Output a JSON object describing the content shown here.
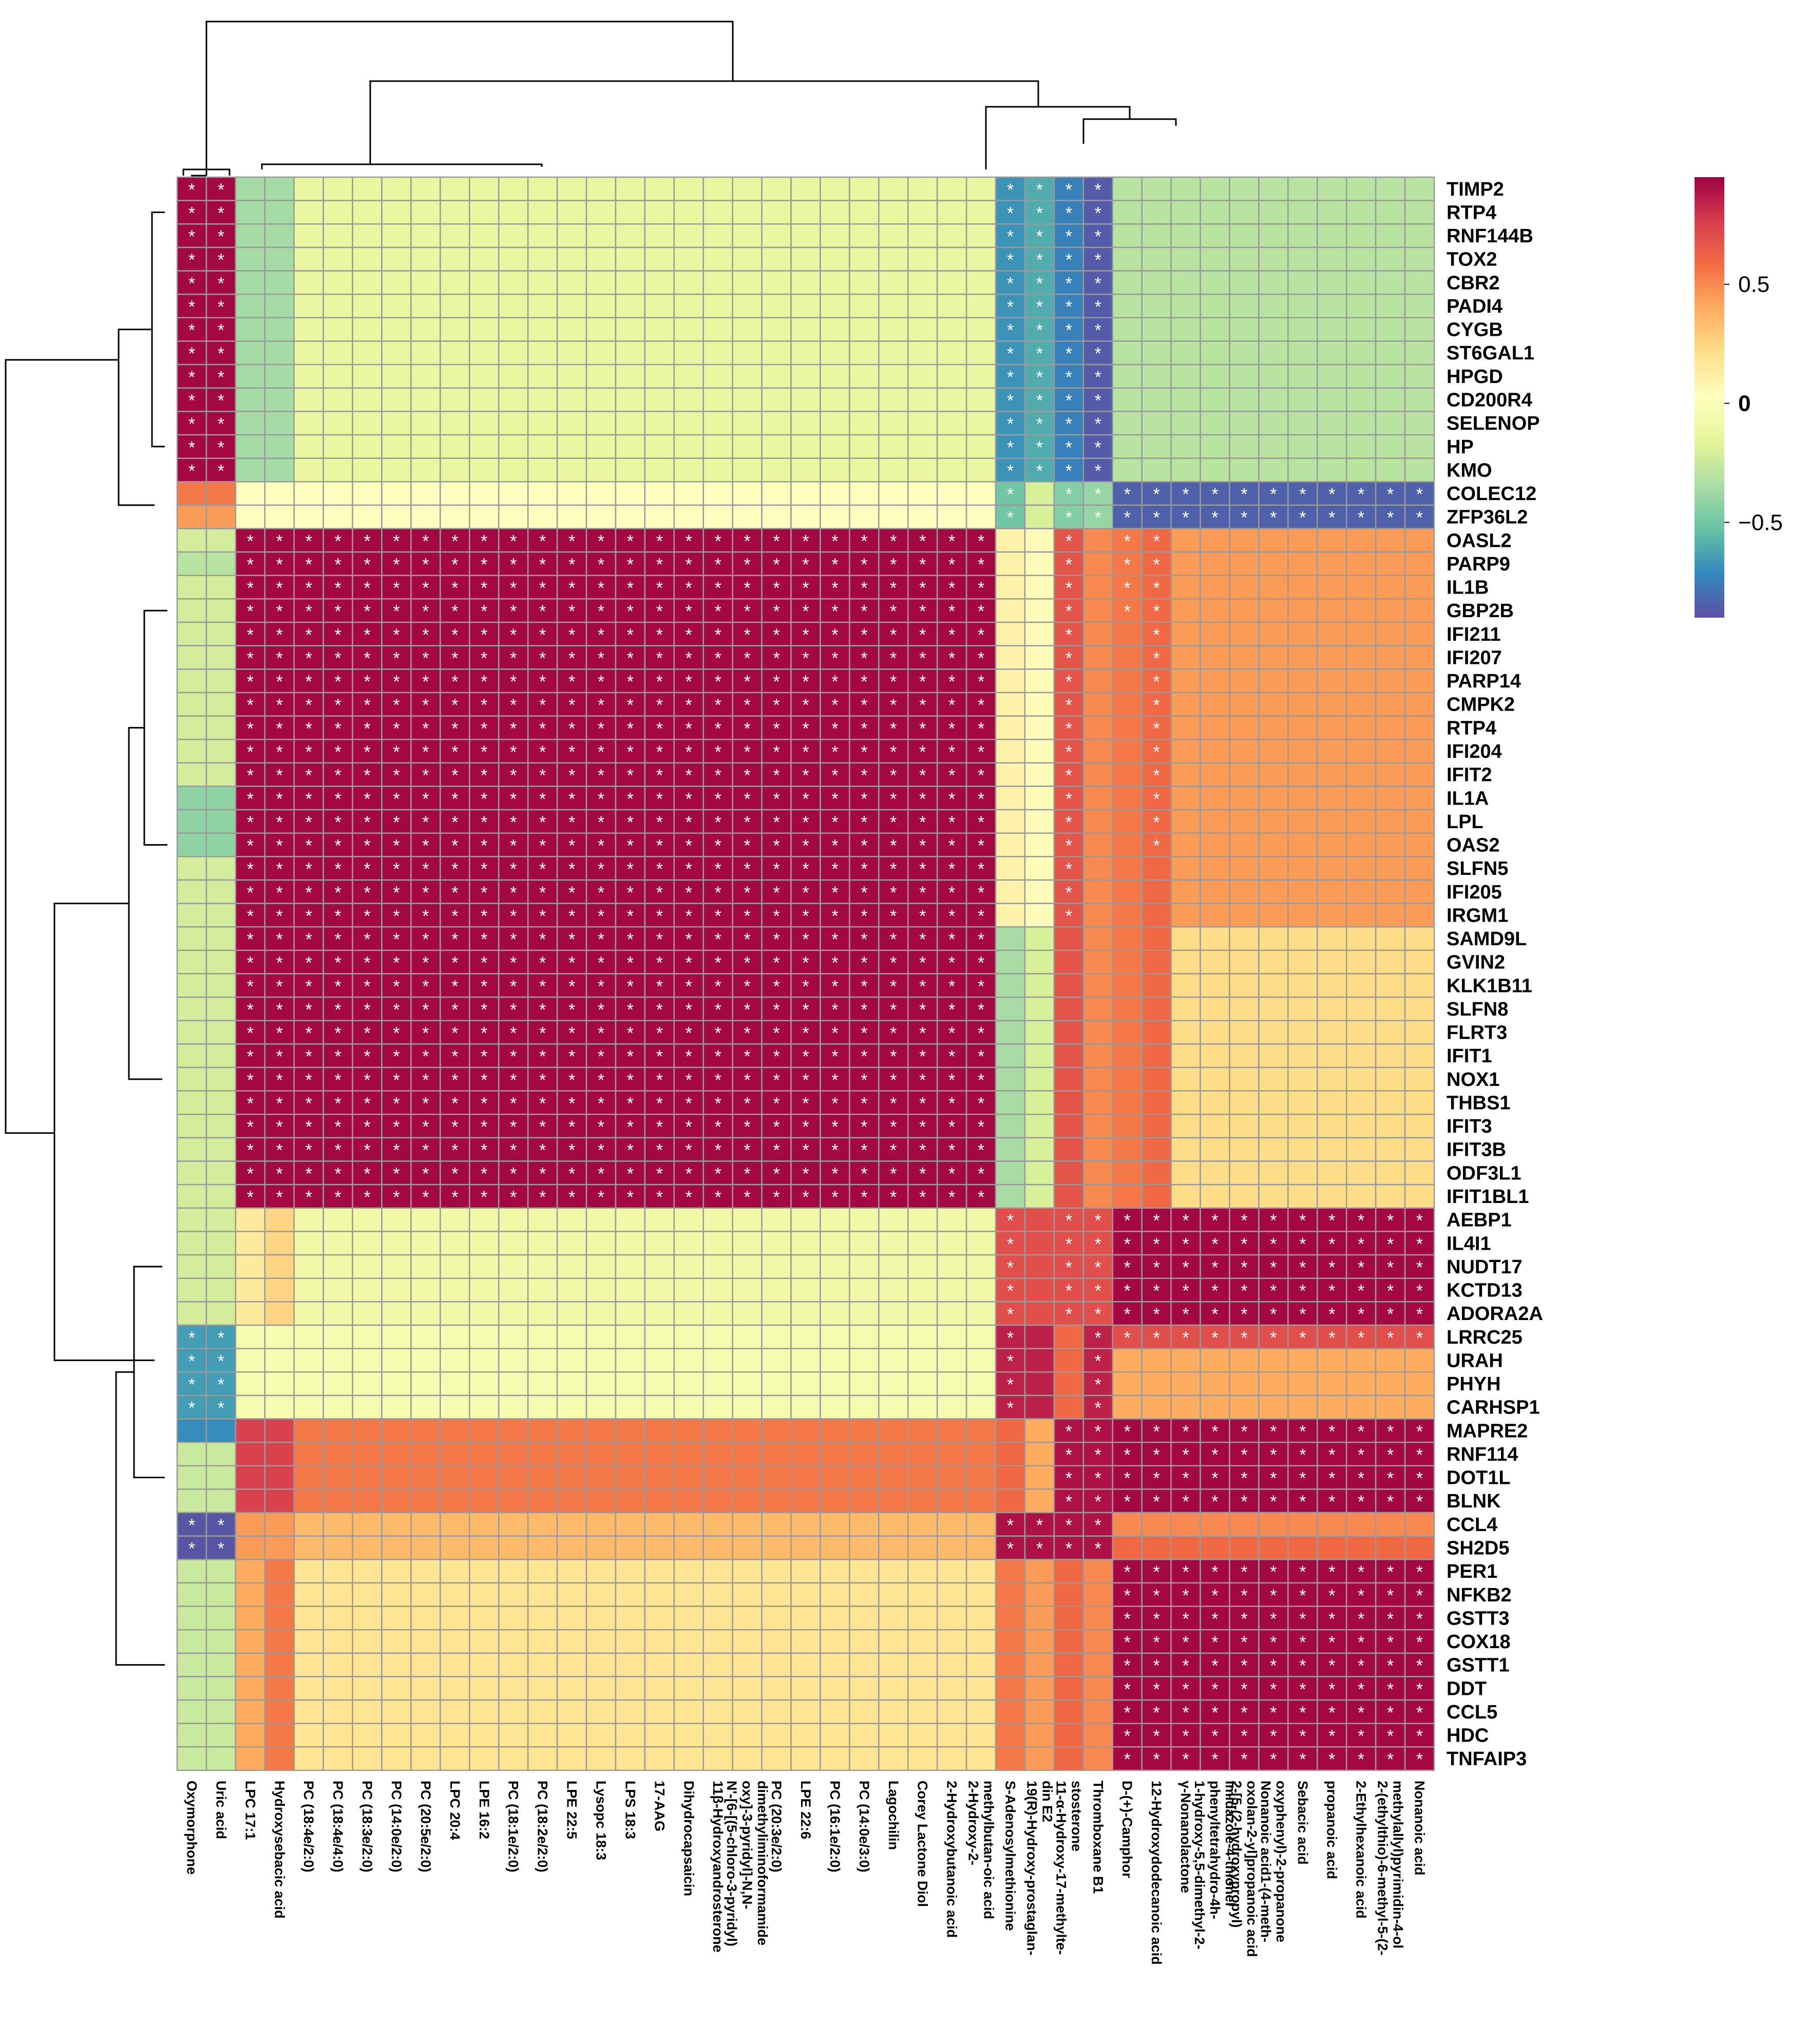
{
  "chart_data": {
    "type": "heatmap",
    "title": "",
    "color_scale": {
      "palette": "Spectral",
      "ticks": [
        0.5,
        0,
        -0.5
      ],
      "tick_labels": [
        "0.5",
        "0",
        "−0.5"
      ],
      "range": [
        -0.9,
        0.95
      ],
      "colors": [
        "#5E4FA2",
        "#3288BD",
        "#66C2A5",
        "#ABDDA4",
        "#E6F598",
        "#FFFFBF",
        "#FEE08B",
        "#FDAE61",
        "#F46D43",
        "#D53E4F",
        "#9E0142"
      ]
    },
    "significance_marker": "*",
    "rows": [
      "TIMP2",
      "RTP4",
      "RNF144B",
      "TOX2",
      "CBR2",
      "PADI4",
      "CYGB",
      "ST6GAL1",
      "HPGD",
      "CD200R4",
      "SELENOP",
      "HP",
      "KMO",
      "COLEC12",
      "ZFP36L2",
      "OASL2",
      "PARP9",
      "IL1B",
      "GBP2B",
      "IFI211",
      "IFI207",
      "PARP14",
      "CMPK2",
      "RTP4",
      "IFI204",
      "IFIT2",
      "IL1A",
      "LPL",
      "OAS2",
      "SLFN5",
      "IFI205",
      "IRGM1",
      "SAMD9L",
      "GVIN2",
      "KLK1B11",
      "SLFN8",
      "FLRT3",
      "IFIT1",
      "NOX1",
      "THBS1",
      "IFIT3",
      "IFIT3B",
      "ODF3L1",
      "IFIT1BL1",
      "AEBP1",
      "IL4I1",
      "NUDT17",
      "KCTD13",
      "ADORA2A",
      "LRRC25",
      "URAH",
      "PHYH",
      "CARHSP1",
      "MAPRE2",
      "RNF114",
      "DOT1L",
      "BLNK",
      "CCL4",
      "SH2D5",
      "PER1",
      "NFKB2",
      "GSTT3",
      "COX18",
      "GSTT1",
      "DDT",
      "CCL5",
      "HDC",
      "TNFAIP3"
    ],
    "columns": [
      [
        "Oxymorphone"
      ],
      [
        "Uric acid"
      ],
      [
        "LPC 17:1"
      ],
      [
        "Hydroxysebacic acid"
      ],
      [
        "PC (18:4e/2:0)"
      ],
      [
        "PC (18:4e/4:0)"
      ],
      [
        "PC (18:3e/2:0)"
      ],
      [
        "PC (14:0e/2:0)"
      ],
      [
        "PC (20:5e/2:0)"
      ],
      [
        "LPC 20:4"
      ],
      [
        "LPE 16:2"
      ],
      [
        "PC (18:1e/2:0)"
      ],
      [
        "PC (18:2e/2:0)"
      ],
      [
        "LPE 22:5"
      ],
      [
        "Lysopc 18:3"
      ],
      [
        "LPS 18:3"
      ],
      [
        "17-AAG"
      ],
      [
        "Dihydrocapsaicin"
      ],
      [
        "11β-Hydroxyandrosterone"
      ],
      [
        "dimethyliminoformamide",
        "oxy]-3-pyridyl]-N,N-",
        "N'-[6-[(5-chloro-3-pyridyl)"
      ],
      [
        "PC (20:3e/2:0)"
      ],
      [
        "LPE 22:6"
      ],
      [
        "PC (16:1e/2:0)"
      ],
      [
        "PC (14:0e/3:0)"
      ],
      [
        "Lagochilin"
      ],
      [
        "Corey Lactone Diol"
      ],
      [
        "2-Hydroxybutanoic acid"
      ],
      [
        "methylbutan-oic acid",
        "2-Hydroxy-2-"
      ],
      [
        "S-Adenosylmethionine"
      ],
      [
        "din E2",
        "19(R)-Hydroxy-prostaglan-"
      ],
      [
        "stosterone",
        "11-α-Hydroxy-17-methylte-"
      ],
      [
        "Thromboxane B1"
      ],
      [
        "D-(+)-Camphor"
      ],
      [
        "12-Hydroxydodecanoic acid"
      ],
      [
        "γ-Nonanolactone"
      ],
      [
        "imidazole-4-thionel",
        "phenyltetrahydro-4h-",
        "1-hydroxy-5,5-dimethyl-2-"
      ],
      [
        "oxolan-2-yl]propanoic acid",
        "2-[5-(2-hydroxypropyl)"
      ],
      [
        "oxyphenyl)-2-propanone",
        "Nonanoic acid1-(4-meth-"
      ],
      [
        "Sebacic acid"
      ],
      [
        "propanoic acid"
      ],
      [
        "2-Ethylhexanoic acid"
      ],
      [
        "methylallyl)pyrimidin-4-ol",
        "2-(ethylthio)-6-methyl-5-(2-"
      ],
      [
        "Nonanoic acid"
      ]
    ],
    "row_blocks": [
      {
        "rows": "TIMP2–KMO",
        "note": "strongly positive with Oxymorphone/Uric acid; strongly negative with S-Adenosylmethionine…Thromboxane B1"
      },
      {
        "rows": "COLEC12–ZFP36L2",
        "note": "strongly negative with D-(+)-Camphor…Nonanoic acid"
      },
      {
        "rows": "OASL2–IFIT1BL1",
        "note": "strongly positive with LPC 17:1…2-Hydroxy-2-methylbutan-oic acid"
      },
      {
        "rows": "AEBP1–TNFAIP3",
        "note": "strongly positive with S-Adenosylmethionine…Nonanoic acid"
      }
    ]
  }
}
